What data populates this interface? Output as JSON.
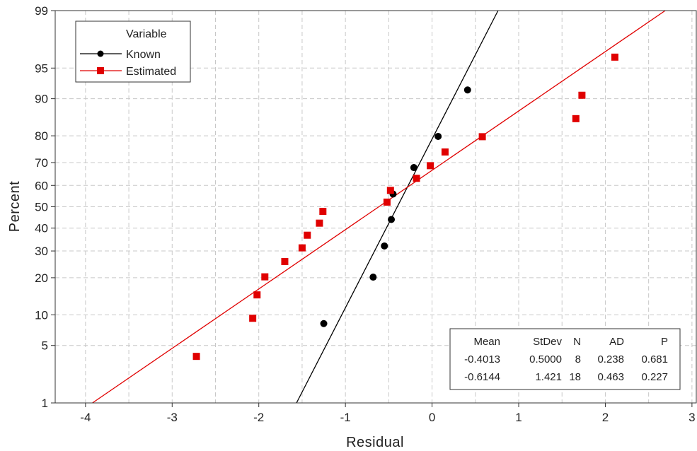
{
  "chart_data": {
    "type": "scatter",
    "subtype": "normal-probability-plot",
    "xlabel": "Residual",
    "ylabel": "Percent",
    "xlim": [
      -4.35,
      3.05
    ],
    "ylim": [
      1,
      99
    ],
    "y_scale": "normal-probability",
    "grid": true,
    "x_ticks": [
      -4,
      -3,
      -2,
      -1,
      0,
      1,
      2,
      3
    ],
    "x_tick_labels": [
      "-4",
      "-3",
      "-2",
      "-1",
      "0",
      "1",
      "2",
      "3"
    ],
    "x_minor_grid": [
      -3.5,
      -2.5,
      -1.5,
      -0.5,
      0.5,
      1.5,
      2.5
    ],
    "y_ticks": [
      1,
      5,
      10,
      20,
      30,
      40,
      50,
      60,
      70,
      80,
      90,
      95,
      99
    ],
    "y_tick_labels": [
      "1",
      "5",
      "10",
      "20",
      "30",
      "40",
      "50",
      "60",
      "70",
      "80",
      "90",
      "95",
      "99"
    ],
    "legend": {
      "title": "Variable",
      "placement": "top-left",
      "entries": [
        "Known",
        "Estimated"
      ]
    },
    "series": [
      {
        "name": "Known",
        "color": "#000000",
        "marker": "circle",
        "fit": {
          "mean": -0.4013,
          "sd": 0.5
        },
        "points": [
          {
            "x": -1.25,
            "y": 8.3
          },
          {
            "x": -0.68,
            "y": 20.2
          },
          {
            "x": -0.55,
            "y": 32.1
          },
          {
            "x": -0.47,
            "y": 44.0
          },
          {
            "x": -0.45,
            "y": 56.0
          },
          {
            "x": -0.21,
            "y": 67.9
          },
          {
            "x": 0.07,
            "y": 79.8
          },
          {
            "x": 0.41,
            "y": 91.7
          }
        ]
      },
      {
        "name": "Estimated",
        "color": "#e00000",
        "marker": "square",
        "fit": {
          "mean": -0.6144,
          "sd": 1.421
        },
        "points": [
          {
            "x": -2.72,
            "y": 3.8
          },
          {
            "x": -2.07,
            "y": 9.3
          },
          {
            "x": -2.02,
            "y": 14.8
          },
          {
            "x": -1.93,
            "y": 20.3
          },
          {
            "x": -1.7,
            "y": 25.8
          },
          {
            "x": -1.5,
            "y": 31.3
          },
          {
            "x": -1.44,
            "y": 36.8
          },
          {
            "x": -1.3,
            "y": 42.3
          },
          {
            "x": -1.26,
            "y": 47.8
          },
          {
            "x": -0.52,
            "y": 52.2
          },
          {
            "x": -0.48,
            "y": 57.7
          },
          {
            "x": -0.18,
            "y": 63.2
          },
          {
            "x": -0.02,
            "y": 68.7
          },
          {
            "x": 0.15,
            "y": 74.2
          },
          {
            "x": 0.58,
            "y": 79.7
          },
          {
            "x": 1.66,
            "y": 85.2
          },
          {
            "x": 1.73,
            "y": 90.7
          },
          {
            "x": 2.11,
            "y": 96.2
          }
        ]
      }
    ],
    "stats_table": {
      "placement": "bottom-right",
      "headers": [
        "Mean",
        "StDev",
        "N",
        "AD",
        "P"
      ],
      "rows": [
        [
          "-0.4013",
          "0.5000",
          "8",
          "0.238",
          "0.681"
        ],
        [
          "-0.6144",
          "1.421",
          "18",
          "0.463",
          "0.227"
        ]
      ]
    }
  }
}
